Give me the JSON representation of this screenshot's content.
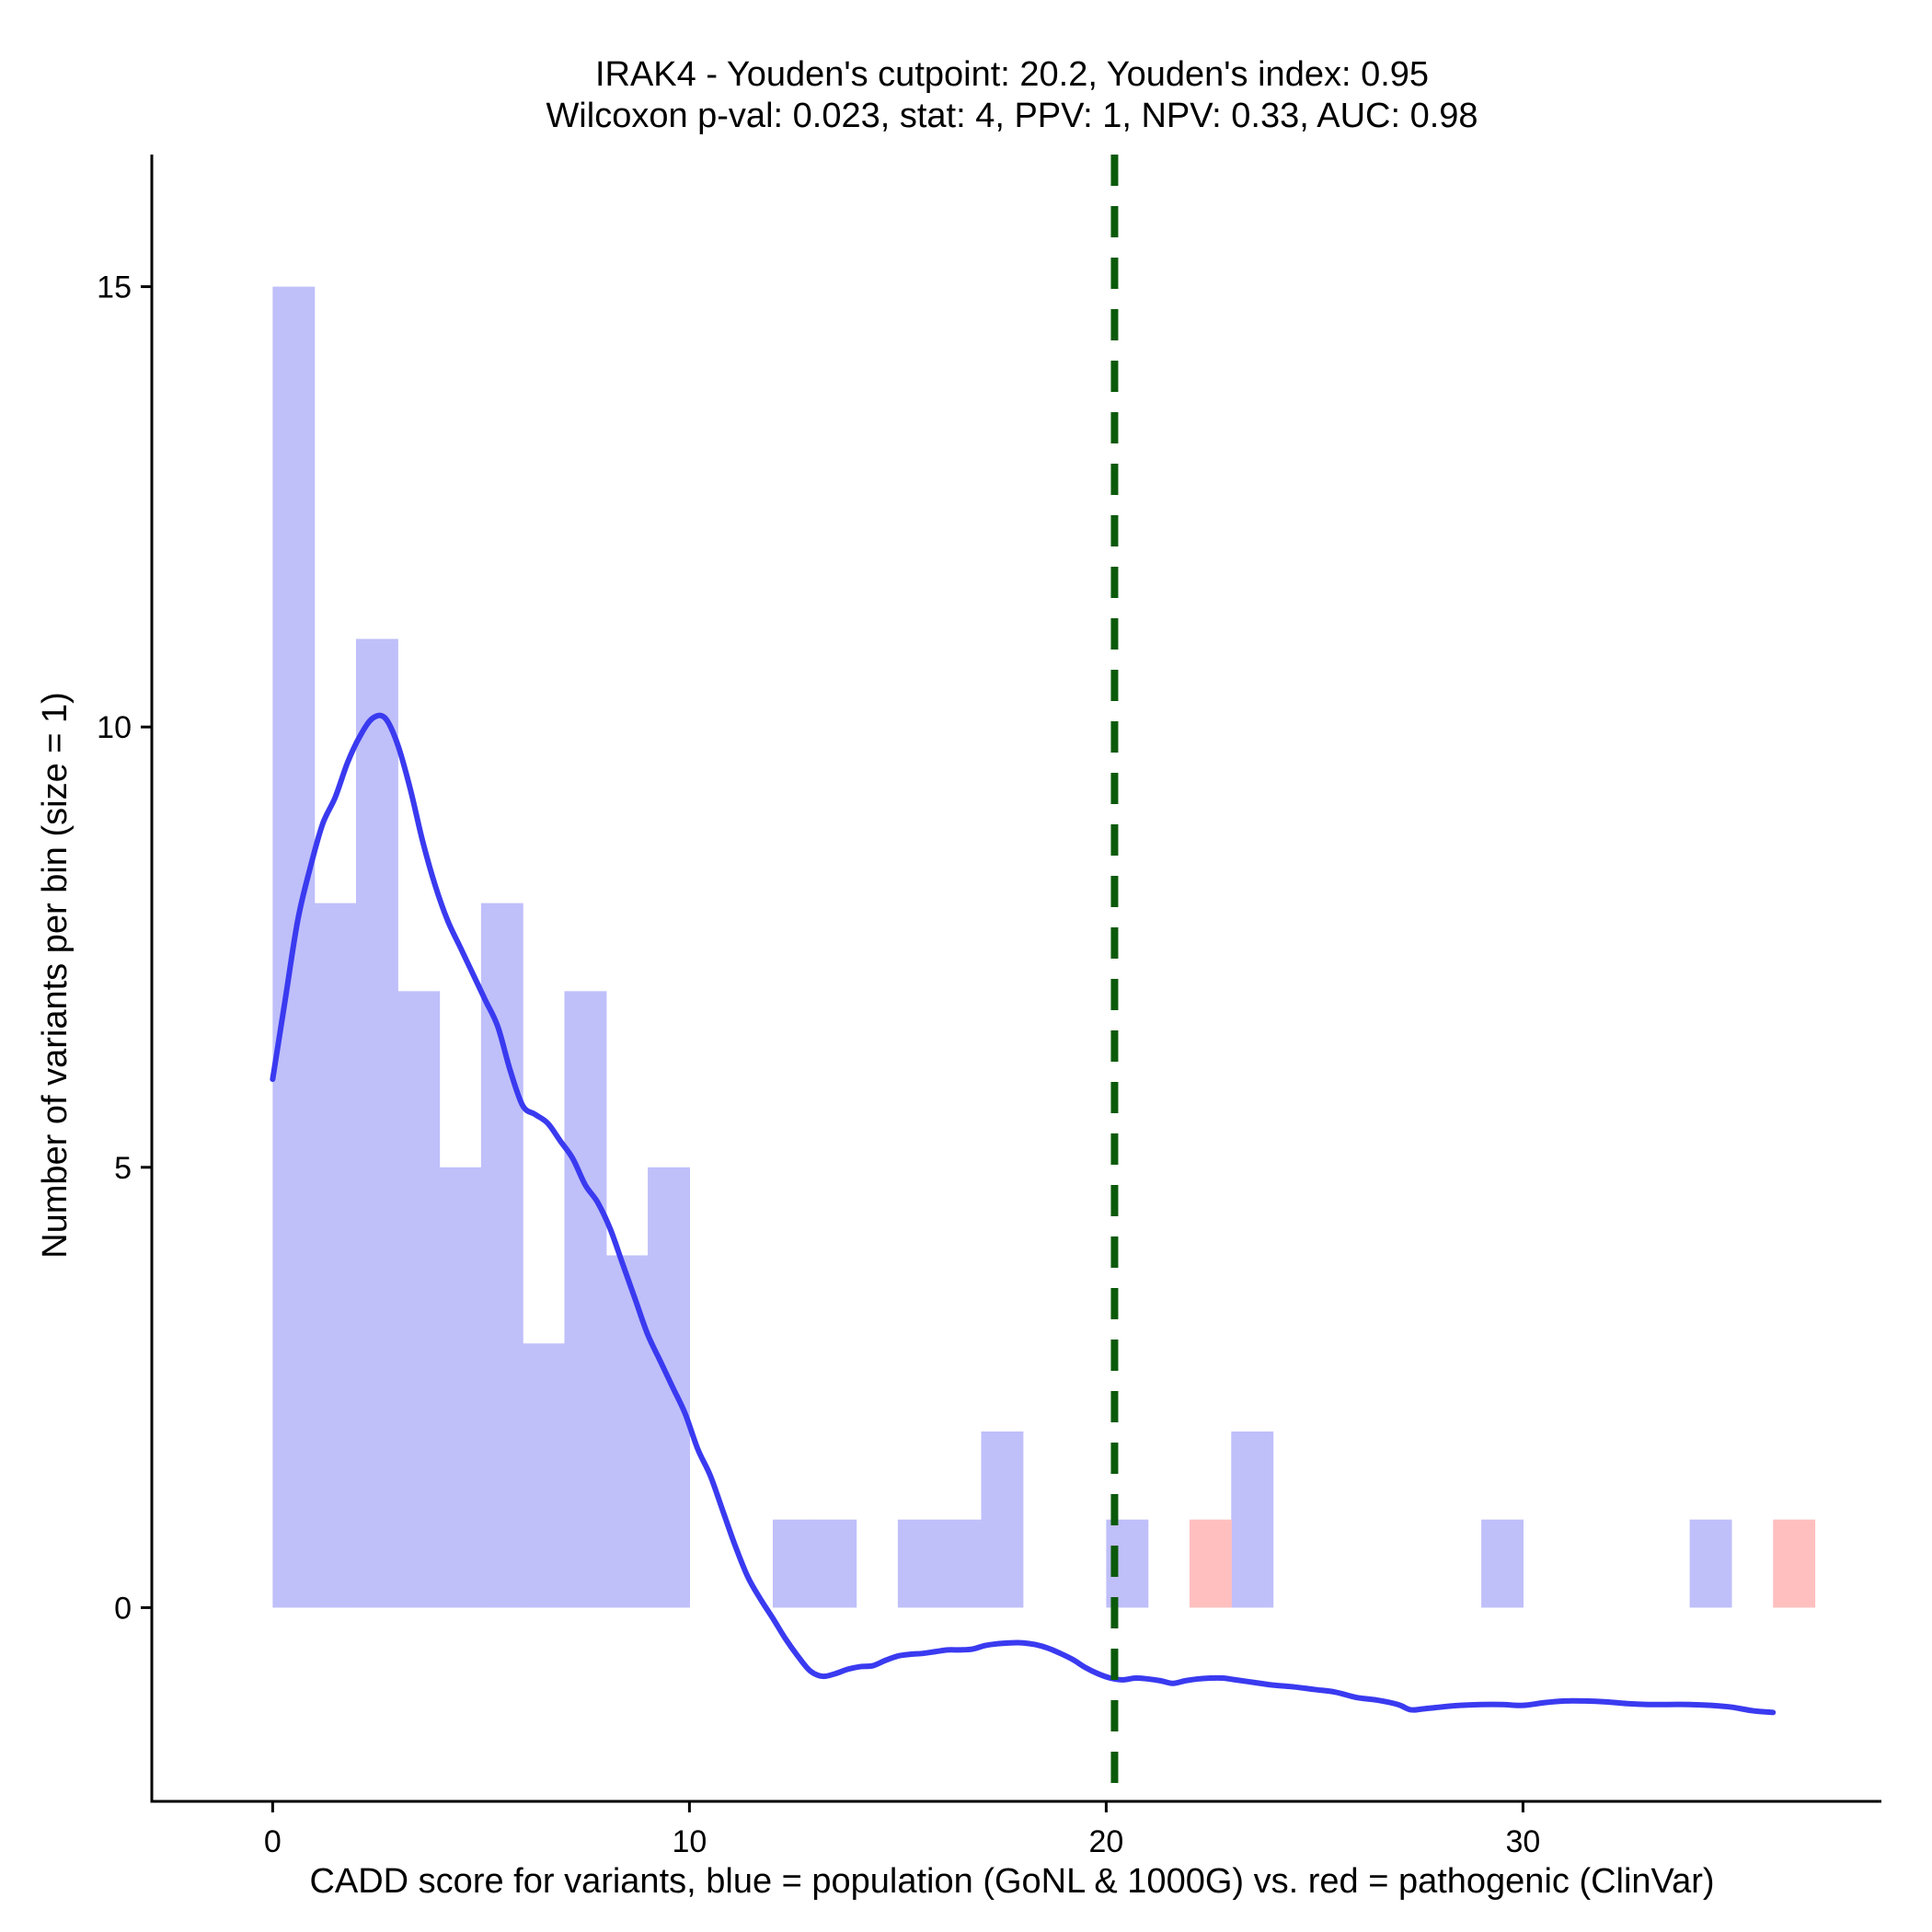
{
  "chart_data": {
    "type": "bar",
    "title_line1": "IRAK4 - Youden's cutpoint: 20.2, Youden's index: 0.95",
    "title_line2": "Wilcoxon p-val: 0.023, stat: 4, PPV: 1, NPV: 0.33, AUC: 0.98",
    "xlabel": "CADD score for variants, blue = population (GoNL & 1000G) vs. red = pathogenic (ClinVar)",
    "ylabel": "Number of variants per bin (size = 1)",
    "xlim": [
      -2.9,
      38.6
    ],
    "ylim": [
      -2.2,
      16.5
    ],
    "xticks": [
      0,
      10,
      20,
      30
    ],
    "yticks": [
      0,
      5,
      10,
      15
    ],
    "bin_width": 1,
    "cutpoint": 20.2,
    "series": [
      {
        "name": "population (GoNL & 1000G)",
        "color": "#bfbffa",
        "bars": [
          {
            "start": 0,
            "count": 15
          },
          {
            "start": 1,
            "count": 8
          },
          {
            "start": 2,
            "count": 11
          },
          {
            "start": 3,
            "count": 7
          },
          {
            "start": 4,
            "count": 5
          },
          {
            "start": 5,
            "count": 8
          },
          {
            "start": 6,
            "count": 3
          },
          {
            "start": 7,
            "count": 7
          },
          {
            "start": 8,
            "count": 4
          },
          {
            "start": 9,
            "count": 5
          },
          {
            "start": 12,
            "count": 1
          },
          {
            "start": 13,
            "count": 1
          },
          {
            "start": 15,
            "count": 1
          },
          {
            "start": 16,
            "count": 1
          },
          {
            "start": 17,
            "count": 2
          },
          {
            "start": 20,
            "count": 1
          },
          {
            "start": 23,
            "count": 2
          },
          {
            "start": 29,
            "count": 1
          },
          {
            "start": 34,
            "count": 1
          }
        ]
      },
      {
        "name": "pathogenic (ClinVar)",
        "color": "#ffbfbf",
        "bars": [
          {
            "start": 22,
            "count": 1
          },
          {
            "start": 36,
            "count": 1
          }
        ]
      }
    ],
    "density": {
      "name": "population density",
      "color": "#3a3af0",
      "points": [
        [
          0.0,
          6.0
        ],
        [
          0.3,
          6.9
        ],
        [
          0.6,
          7.8
        ],
        [
          0.9,
          8.4
        ],
        [
          1.2,
          8.9
        ],
        [
          1.5,
          9.2
        ],
        [
          1.8,
          9.6
        ],
        [
          2.1,
          9.9
        ],
        [
          2.4,
          10.1
        ],
        [
          2.7,
          10.1
        ],
        [
          3.0,
          9.8
        ],
        [
          3.3,
          9.3
        ],
        [
          3.6,
          8.7
        ],
        [
          3.9,
          8.2
        ],
        [
          4.2,
          7.8
        ],
        [
          4.5,
          7.5
        ],
        [
          4.8,
          7.2
        ],
        [
          5.1,
          6.9
        ],
        [
          5.4,
          6.6
        ],
        [
          5.7,
          6.1
        ],
        [
          6.0,
          5.7
        ],
        [
          6.3,
          5.6
        ],
        [
          6.6,
          5.5
        ],
        [
          6.9,
          5.3
        ],
        [
          7.2,
          5.1
        ],
        [
          7.5,
          4.8
        ],
        [
          7.8,
          4.6
        ],
        [
          8.1,
          4.3
        ],
        [
          8.4,
          3.9
        ],
        [
          8.7,
          3.5
        ],
        [
          9.0,
          3.1
        ],
        [
          9.3,
          2.8
        ],
        [
          9.6,
          2.5
        ],
        [
          9.9,
          2.2
        ],
        [
          10.2,
          1.8
        ],
        [
          10.5,
          1.5
        ],
        [
          10.8,
          1.1
        ],
        [
          11.1,
          0.7
        ],
        [
          11.4,
          0.35
        ],
        [
          11.7,
          0.1
        ],
        [
          12.0,
          -0.12
        ],
        [
          12.3,
          -0.35
        ],
        [
          12.6,
          -0.55
        ],
        [
          12.9,
          -0.72
        ],
        [
          13.2,
          -0.78
        ],
        [
          13.5,
          -0.75
        ],
        [
          13.8,
          -0.7
        ],
        [
          14.1,
          -0.67
        ],
        [
          14.4,
          -0.66
        ],
        [
          14.7,
          -0.6
        ],
        [
          15.0,
          -0.55
        ],
        [
          15.3,
          -0.53
        ],
        [
          15.6,
          -0.52
        ],
        [
          15.9,
          -0.5
        ],
        [
          16.2,
          -0.48
        ],
        [
          16.5,
          -0.48
        ],
        [
          16.8,
          -0.47
        ],
        [
          17.1,
          -0.43
        ],
        [
          17.4,
          -0.41
        ],
        [
          17.7,
          -0.4
        ],
        [
          18.0,
          -0.4
        ],
        [
          18.3,
          -0.42
        ],
        [
          18.6,
          -0.46
        ],
        [
          18.9,
          -0.52
        ],
        [
          19.2,
          -0.59
        ],
        [
          19.5,
          -0.68
        ],
        [
          19.8,
          -0.75
        ],
        [
          20.1,
          -0.8
        ],
        [
          20.4,
          -0.82
        ],
        [
          20.7,
          -0.8
        ],
        [
          21.0,
          -0.81
        ],
        [
          21.3,
          -0.83
        ],
        [
          21.6,
          -0.86
        ],
        [
          21.9,
          -0.83
        ],
        [
          22.2,
          -0.81
        ],
        [
          22.5,
          -0.8
        ],
        [
          22.8,
          -0.8
        ],
        [
          23.1,
          -0.82
        ],
        [
          23.4,
          -0.84
        ],
        [
          23.7,
          -0.86
        ],
        [
          24.0,
          -0.88
        ],
        [
          24.5,
          -0.9
        ],
        [
          25.0,
          -0.93
        ],
        [
          25.5,
          -0.96
        ],
        [
          26.0,
          -1.02
        ],
        [
          26.5,
          -1.05
        ],
        [
          27.0,
          -1.1
        ],
        [
          27.3,
          -1.16
        ],
        [
          27.6,
          -1.15
        ],
        [
          28.0,
          -1.13
        ],
        [
          28.5,
          -1.11
        ],
        [
          29.0,
          -1.1
        ],
        [
          29.5,
          -1.1
        ],
        [
          30.0,
          -1.11
        ],
        [
          30.5,
          -1.08
        ],
        [
          31.0,
          -1.06
        ],
        [
          31.5,
          -1.06
        ],
        [
          32.0,
          -1.07
        ],
        [
          32.5,
          -1.09
        ],
        [
          33.0,
          -1.1
        ],
        [
          33.5,
          -1.1
        ],
        [
          34.0,
          -1.1
        ],
        [
          34.5,
          -1.11
        ],
        [
          35.0,
          -1.13
        ],
        [
          35.5,
          -1.17
        ],
        [
          36.0,
          -1.19
        ]
      ]
    }
  }
}
